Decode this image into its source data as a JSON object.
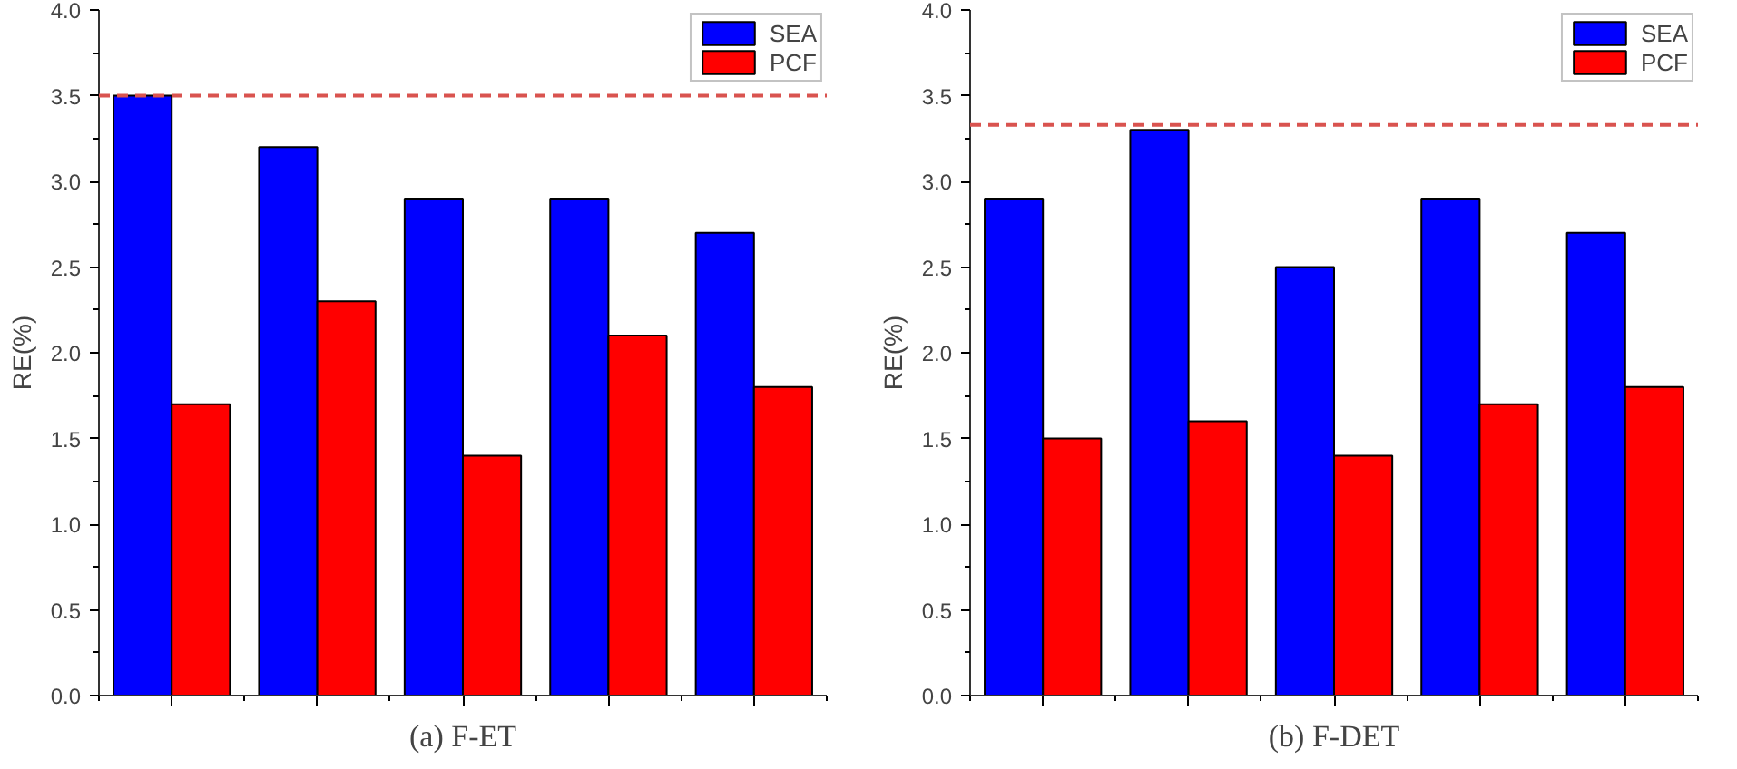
{
  "chart_data": [
    {
      "type": "bar",
      "title": "(a) F-ET",
      "ylabel": "RE(%)",
      "categories": [
        null,
        null,
        null,
        null,
        null
      ],
      "series": [
        {
          "name": "SEA",
          "color": "#0000ff",
          "values": [
            3.5,
            3.2,
            2.9,
            2.9,
            2.7
          ]
        },
        {
          "name": "PCF",
          "color": "#ff0000",
          "values": [
            1.7,
            2.3,
            1.4,
            2.1,
            1.8
          ]
        }
      ],
      "ylim": [
        0,
        4.0
      ],
      "yticks": [
        {
          "value": 0,
          "label": "0.0"
        },
        0.5,
        {
          "value": 1,
          "label": "1.0"
        },
        1.5,
        {
          "value": 2,
          "label": "2.0"
        },
        2.5,
        {
          "value": 3,
          "label": "3.0"
        },
        3.5,
        {
          "value": 4,
          "label": "4.0"
        }
      ],
      "ref_lines": [
        {
          "axis": "y",
          "value": 3.5,
          "color": "#d9534f",
          "line_style": "dashed"
        }
      ],
      "legend": "top right",
      "grid": false,
      "tick_labels": "y"
    },
    {
      "type": "bar",
      "title": "(b) F-DET",
      "ylabel": "RE(%)",
      "categories": [
        null,
        null,
        null,
        null,
        null
      ],
      "series": [
        {
          "name": "SEA",
          "color": "#0000ff",
          "values": [
            2.9,
            3.3,
            2.5,
            2.9,
            2.7
          ]
        },
        {
          "name": "PCF",
          "color": "#ff0000",
          "values": [
            1.5,
            1.6,
            1.4,
            1.7,
            1.8
          ]
        }
      ],
      "ylim": [
        0,
        4.0
      ],
      "yticks": [
        {
          "value": 0,
          "label": "0.0"
        },
        0.5,
        {
          "value": 1,
          "label": "1.0"
        },
        1.5,
        {
          "value": 2,
          "label": "2.0"
        },
        2.5,
        {
          "value": 3,
          "label": "3.0"
        },
        3.5,
        {
          "value": 4,
          "label": "4.0"
        }
      ],
      "ref_lines": [
        {
          "axis": "y",
          "value": 3.33,
          "color": "#d9534f",
          "line_style": "dashed"
        }
      ],
      "legend": "top right",
      "grid": false,
      "tick_labels": "y"
    }
  ]
}
